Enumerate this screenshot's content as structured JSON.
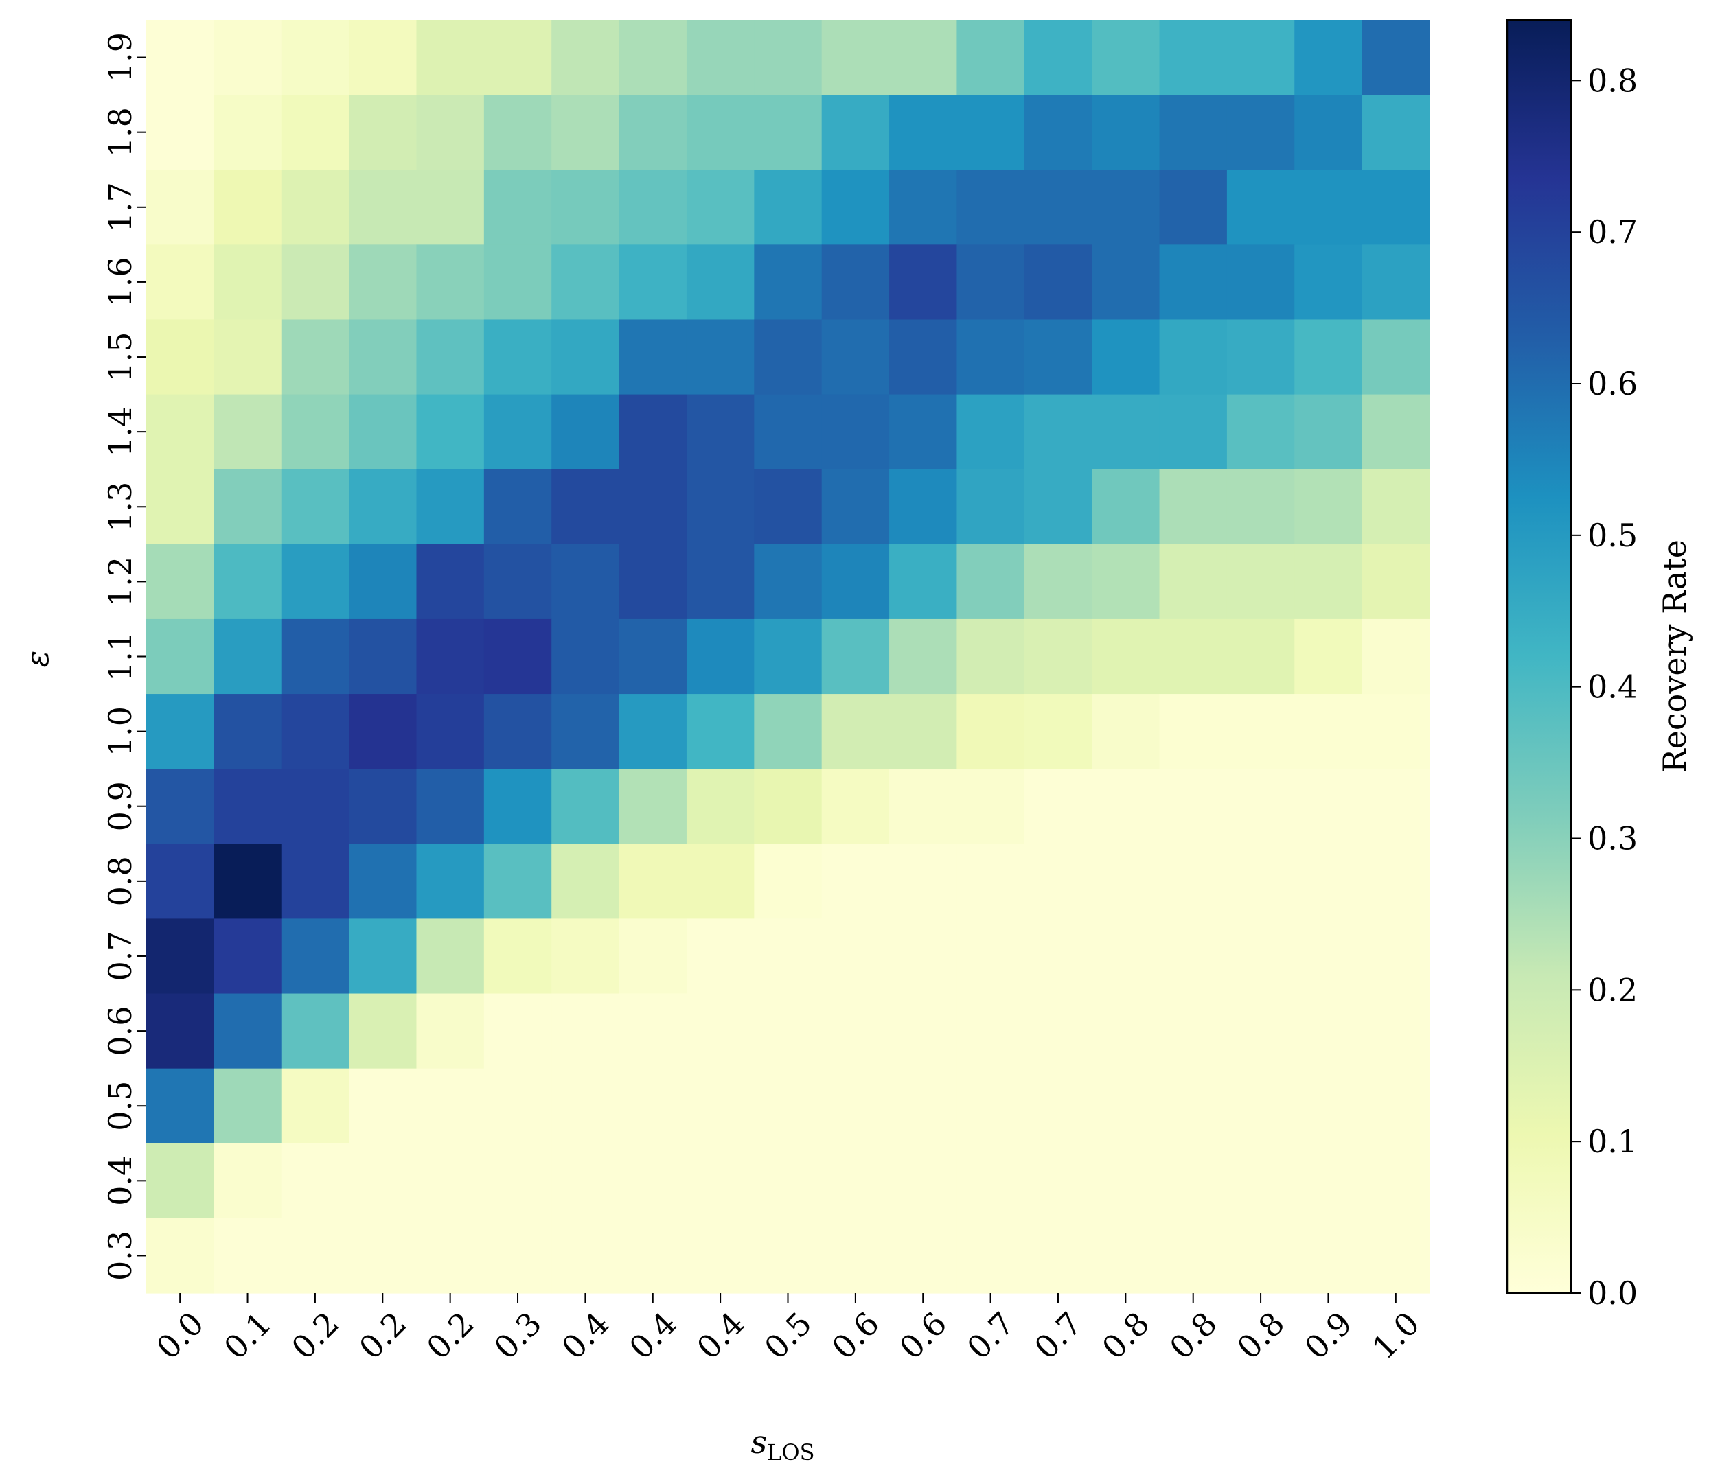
{
  "chart_data": {
    "type": "heatmap",
    "xlabel": "s",
    "xlabel_sub": "LOS",
    "ylabel": "ε",
    "colorbar_label": "Recovery Rate",
    "colormap": "YlGnBu",
    "colorbar_range": [
      0.0,
      0.84
    ],
    "colorbar_ticks": [
      "0.0",
      "0.1",
      "0.2",
      "0.3",
      "0.4",
      "0.5",
      "0.6",
      "0.7",
      "0.8"
    ],
    "x_tick_labels": [
      "0.0",
      "0.1",
      "0.2",
      "0.2",
      "0.2",
      "0.3",
      "0.4",
      "0.4",
      "0.4",
      "0.5",
      "0.6",
      "0.6",
      "0.7",
      "0.7",
      "0.8",
      "0.8",
      "0.8",
      "0.9",
      "1.0"
    ],
    "y_tick_labels_top_to_bottom": [
      "1.9",
      "1.8",
      "1.7",
      "1.6",
      "1.5",
      "1.4",
      "1.3",
      "1.2",
      "1.1",
      "1.0",
      "0.9",
      "0.8",
      "0.7",
      "0.6",
      "0.5",
      "0.4",
      "0.3"
    ],
    "values_top_to_bottom": [
      [
        0.01,
        0.03,
        0.05,
        0.07,
        0.15,
        0.15,
        0.22,
        0.25,
        0.28,
        0.28,
        0.25,
        0.25,
        0.34,
        0.43,
        0.39,
        0.43,
        0.43,
        0.51,
        0.6
      ],
      [
        0.01,
        0.05,
        0.08,
        0.18,
        0.2,
        0.27,
        0.25,
        0.31,
        0.33,
        0.33,
        0.45,
        0.52,
        0.52,
        0.57,
        0.55,
        0.58,
        0.58,
        0.55,
        0.45
      ],
      [
        0.04,
        0.1,
        0.15,
        0.21,
        0.21,
        0.32,
        0.33,
        0.36,
        0.38,
        0.46,
        0.52,
        0.58,
        0.6,
        0.6,
        0.6,
        0.62,
        0.52,
        0.52,
        0.52
      ],
      [
        0.07,
        0.14,
        0.2,
        0.27,
        0.3,
        0.32,
        0.38,
        0.43,
        0.46,
        0.58,
        0.62,
        0.69,
        0.62,
        0.64,
        0.6,
        0.55,
        0.55,
        0.51,
        0.48
      ],
      [
        0.11,
        0.13,
        0.27,
        0.31,
        0.37,
        0.44,
        0.46,
        0.58,
        0.58,
        0.62,
        0.6,
        0.63,
        0.59,
        0.58,
        0.52,
        0.46,
        0.45,
        0.41,
        0.33
      ],
      [
        0.14,
        0.22,
        0.29,
        0.35,
        0.42,
        0.49,
        0.55,
        0.68,
        0.65,
        0.61,
        0.61,
        0.59,
        0.48,
        0.45,
        0.45,
        0.45,
        0.38,
        0.36,
        0.26
      ],
      [
        0.14,
        0.31,
        0.38,
        0.45,
        0.5,
        0.63,
        0.68,
        0.68,
        0.65,
        0.66,
        0.6,
        0.54,
        0.47,
        0.45,
        0.34,
        0.25,
        0.25,
        0.24,
        0.17
      ],
      [
        0.26,
        0.4,
        0.49,
        0.55,
        0.69,
        0.66,
        0.64,
        0.68,
        0.65,
        0.58,
        0.55,
        0.44,
        0.31,
        0.25,
        0.24,
        0.17,
        0.17,
        0.17,
        0.13
      ],
      [
        0.32,
        0.49,
        0.63,
        0.66,
        0.72,
        0.73,
        0.64,
        0.62,
        0.54,
        0.49,
        0.38,
        0.25,
        0.18,
        0.16,
        0.14,
        0.14,
        0.14,
        0.08,
        0.03
      ],
      [
        0.5,
        0.66,
        0.69,
        0.74,
        0.71,
        0.66,
        0.62,
        0.5,
        0.42,
        0.29,
        0.18,
        0.18,
        0.09,
        0.08,
        0.04,
        0.02,
        0.02,
        0.02,
        0.02
      ],
      [
        0.65,
        0.7,
        0.7,
        0.68,
        0.63,
        0.52,
        0.39,
        0.24,
        0.14,
        0.12,
        0.06,
        0.03,
        0.03,
        0.01,
        0.01,
        0.01,
        0.01,
        0.01,
        0.01
      ],
      [
        0.7,
        0.84,
        0.7,
        0.59,
        0.5,
        0.38,
        0.17,
        0.09,
        0.09,
        0.02,
        0.01,
        0.01,
        0.01,
        0.01,
        0.01,
        0.01,
        0.01,
        0.01,
        0.01
      ],
      [
        0.8,
        0.72,
        0.6,
        0.45,
        0.21,
        0.08,
        0.06,
        0.03,
        0.01,
        0.01,
        0.01,
        0.01,
        0.01,
        0.01,
        0.01,
        0.01,
        0.01,
        0.01,
        0.01
      ],
      [
        0.78,
        0.6,
        0.37,
        0.16,
        0.04,
        0.01,
        0.01,
        0.01,
        0.01,
        0.01,
        0.01,
        0.01,
        0.01,
        0.01,
        0.01,
        0.01,
        0.01,
        0.01,
        0.01
      ],
      [
        0.58,
        0.27,
        0.06,
        0.01,
        0.01,
        0.01,
        0.01,
        0.01,
        0.01,
        0.01,
        0.01,
        0.01,
        0.01,
        0.01,
        0.01,
        0.01,
        0.01,
        0.01,
        0.01
      ],
      [
        0.19,
        0.03,
        0.01,
        0.01,
        0.01,
        0.01,
        0.01,
        0.01,
        0.01,
        0.01,
        0.01,
        0.01,
        0.01,
        0.01,
        0.01,
        0.01,
        0.01,
        0.01,
        0.01
      ],
      [
        0.03,
        0.01,
        0.01,
        0.01,
        0.01,
        0.01,
        0.01,
        0.01,
        0.01,
        0.01,
        0.01,
        0.01,
        0.01,
        0.01,
        0.01,
        0.01,
        0.01,
        0.01,
        0.01
      ]
    ]
  }
}
